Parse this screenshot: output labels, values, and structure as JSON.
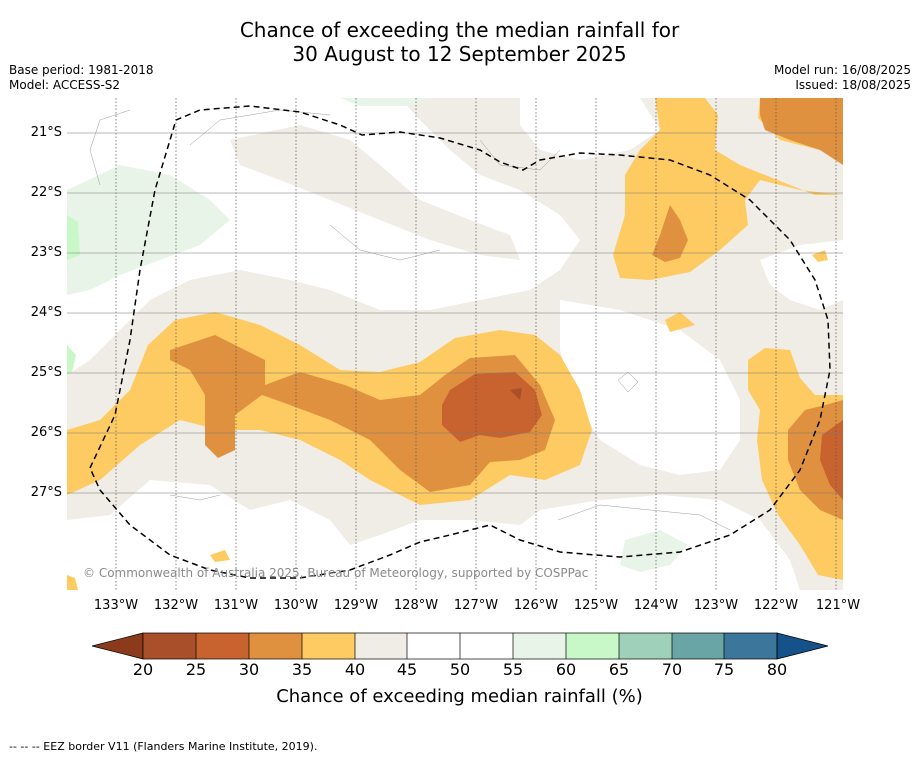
{
  "header": {
    "title_line1": "Chance of exceeding the median rainfall for",
    "title_line2": "30 August to 12 September 2025",
    "base_period": "Base period: 1981-2018",
    "model": "Model: ACCESS-S2",
    "model_run": "Model run: 16/08/2025",
    "issued": "Issued: 18/08/2025"
  },
  "map": {
    "lat_labels": [
      "21°S",
      "22°S",
      "23°S",
      "24°S",
      "25°S",
      "26°S",
      "27°S"
    ],
    "lon_labels": [
      "133°W",
      "132°W",
      "131°W",
      "130°W",
      "129°W",
      "128°W",
      "127°W",
      "126°W",
      "125°W",
      "124°W",
      "123°W",
      "122°W",
      "121°W"
    ],
    "copyright": "© Commonwealth of Australia 2025, Bureau of Meteorology, supported by COSPPac",
    "colors": {
      "c20_25": "#a9502b",
      "c25_30": "#c8632f",
      "c30_35": "#e0913f",
      "c35_40": "#fecb62",
      "c40_45": "#f0ece6",
      "c45_55": "#ffffff",
      "c55_60": "#e8f4e8",
      "c60_65": "#c8f8c8",
      "c65_70": "#9fd0ba",
      "c70_75": "#6aa5a5",
      "c75_80": "#3c779b",
      "below": "#8b3a1c",
      "above": "#15528a"
    }
  },
  "colorbar": {
    "ticks": [
      "20",
      "25",
      "30",
      "35",
      "40",
      "45",
      "50",
      "55",
      "60",
      "65",
      "70",
      "75",
      "80"
    ],
    "label": "Chance of exceeding median rainfall (%)"
  },
  "footnote": "--  --  -- EEZ border V11 (Flanders Marine Institute, 2019)."
}
